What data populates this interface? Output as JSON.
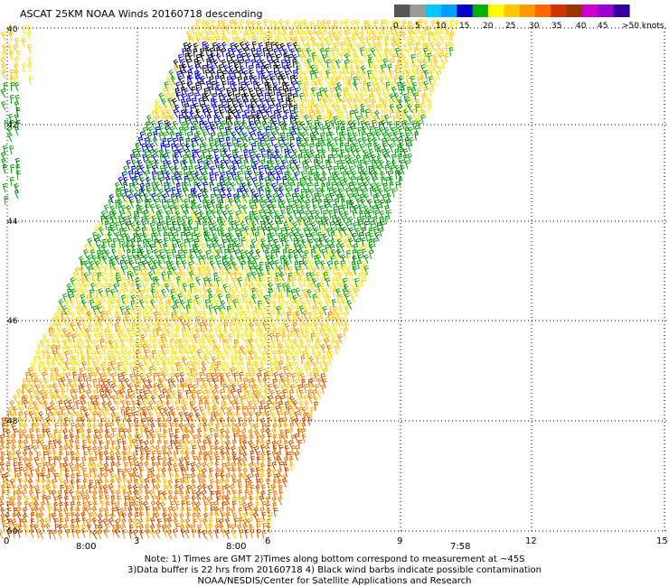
{
  "title": "ASCAT 25KM NOAA Winds 20160718 descending",
  "legend": {
    "ticks": [
      "0",
      "5",
      "10",
      "15",
      "20",
      "25",
      "30",
      "35",
      "40",
      "45",
      ">50 knots"
    ],
    "colors": [
      "#555555",
      "#9a9a9a",
      "#00c8ff",
      "#00a0ff",
      "#0000cc",
      "#00b000",
      "#ffff00",
      "#ffc800",
      "#ff9900",
      "#ff6600",
      "#cc3300",
      "#993300",
      "#cc00cc",
      "#9900cc",
      "#330099"
    ]
  },
  "lat_labels": [
    "40",
    "42",
    "44",
    "46",
    "48",
    "50"
  ],
  "lon_labels": [
    "0",
    "3",
    "6",
    "9",
    "12",
    "15"
  ],
  "time_labels": [
    "8:00",
    "8:00",
    "7:58"
  ],
  "time_color": "#800080",
  "notes": [
    "Note: 1) Times are GMT 2)Times along bottom correspond to measurement at ~45S",
    "3)Data buffer is 22 hrs from 20160718 4) Black wind barbs indicate possible contamination",
    "NOAA/NESDIS/Center for Satellite Applications and Research"
  ],
  "barb_colors": {
    "yellow": "#f2e600",
    "gold": "#ffc000",
    "orange": "#f07a00",
    "darkorange": "#c84a00",
    "green": "#00a000",
    "darkgreen": "#007000",
    "blue": "#0000e0",
    "black": "#000000"
  }
}
